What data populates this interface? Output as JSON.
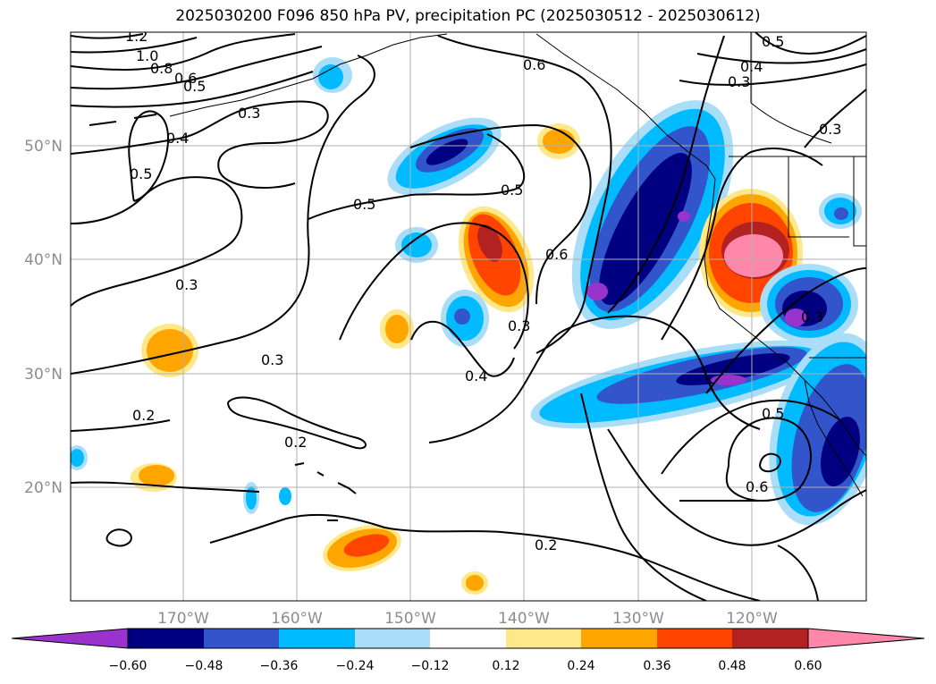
{
  "title": "2025030200 F096 850 hPa PV, precipitation PC (2025030512 - 2025030612)",
  "colors": {
    "bin_neg_072": "#9933cc",
    "bin_neg_060": "#000080",
    "bin_neg_048": "#3355cc",
    "bin_neg_036": "#00bbff",
    "bin_neg_024": "#aaddf8",
    "bin_neutral": "#ffffff",
    "bin_pos_012": "#ffe88a",
    "bin_pos_024": "#ffa500",
    "bin_pos_036": "#ff4400",
    "bin_pos_048": "#b22222",
    "bin_pos_060": "#ff88aa",
    "contour": "#000000",
    "grid": "#b0b0b0",
    "coast": "#000000"
  },
  "chart_data": {
    "type": "map",
    "variables": [
      "850 hPa PV",
      "precipitation PC"
    ],
    "lon_range": [
      -180,
      -110
    ],
    "lat_range": [
      10,
      60
    ],
    "grid": true,
    "lon_ticks": [
      "170°W",
      "160°W",
      "150°W",
      "140°W",
      "130°W",
      "120°W"
    ],
    "lon_tick_values": [
      -170,
      -160,
      -150,
      -140,
      -130,
      -120
    ],
    "lat_ticks": [
      "20°N",
      "30°N",
      "40°N",
      "50°N"
    ],
    "lat_tick_values": [
      20,
      30,
      40,
      50
    ],
    "colorbar": {
      "orientation": "horizontal",
      "extend": "both",
      "levels": [
        -0.6,
        -0.48,
        -0.36,
        -0.24,
        -0.12,
        0.12,
        0.24,
        0.36,
        0.48,
        0.6
      ],
      "tick_labels": [
        "−0.60",
        "−0.48",
        "−0.36",
        "−0.24",
        "−0.12",
        "0.12",
        "0.24",
        "0.36",
        "0.48",
        "0.60"
      ]
    },
    "contour_labels": [
      "1.2",
      "1.0",
      "0.8",
      "0.6",
      "0.5",
      "0.3",
      "0.4",
      "0.5",
      "0.3",
      "0.5",
      "0.6",
      "0.5",
      "0.6",
      "0.3",
      "0.3",
      "0.4",
      "0.2",
      "0.2",
      "0.2",
      "0.5",
      "0.4",
      "0.3",
      "0.3",
      "0.5",
      "0.6",
      "0.3"
    ]
  }
}
